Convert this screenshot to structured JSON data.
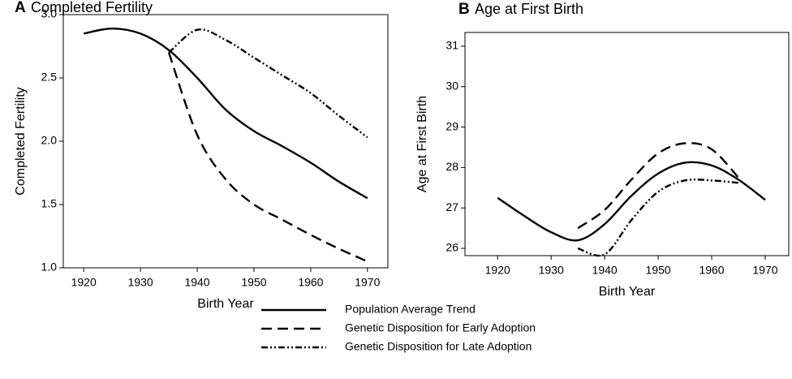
{
  "chart_data": [
    {
      "type": "line",
      "panel": "A",
      "title": "Completed Fertility",
      "xlabel": "Birth Year",
      "ylabel": "Completed Fertility",
      "x": [
        1920,
        1925,
        1930,
        1935,
        1940,
        1945,
        1950,
        1955,
        1960,
        1965,
        1970
      ],
      "xlim": [
        1916.4,
        1973.6
      ],
      "xticks": [
        1920,
        1930,
        1940,
        1950,
        1960,
        1970
      ],
      "ylim": [
        1.0,
        3.0
      ],
      "yticks": [
        {
          "value": 1.0,
          "label": "1.0"
        },
        1.5,
        {
          "value": 2.0,
          "label": "2.0"
        },
        2.5,
        {
          "value": 3.0,
          "label": "3.0"
        }
      ],
      "series": [
        {
          "legend": 0,
          "color": "#000000",
          "values": [
            2.85,
            2.89,
            2.85,
            2.72,
            2.5,
            2.25,
            2.08,
            1.96,
            1.83,
            1.68,
            1.55
          ]
        },
        {
          "legend": 1,
          "color": "#000000",
          "values": [
            null,
            null,
            null,
            2.7,
            2.05,
            1.7,
            1.5,
            1.38,
            1.26,
            1.15,
            1.05
          ]
        },
        {
          "legend": 2,
          "color": "#000000",
          "values": [
            null,
            null,
            null,
            2.7,
            2.88,
            2.8,
            2.66,
            2.52,
            2.38,
            2.2,
            2.03
          ]
        }
      ]
    },
    {
      "type": "line",
      "panel": "B",
      "title": "Age at First Birth",
      "xlabel": "Birth Year",
      "ylabel": "Age at First Birth",
      "x": [
        1920,
        1925,
        1930,
        1935,
        1940,
        1945,
        1950,
        1955,
        1960,
        1965,
        1970
      ],
      "xlim": [
        1913.9,
        1974.4
      ],
      "xticks": [
        1920,
        1930,
        1940,
        1950,
        1960,
        1970
      ],
      "ylim": [
        25.82,
        31.34
      ],
      "yticks": [
        26,
        27,
        28,
        29,
        30,
        31
      ],
      "series": [
        {
          "legend": 0,
          "color": "#000000",
          "values": [
            27.25,
            26.8,
            26.4,
            26.2,
            26.6,
            27.3,
            27.85,
            28.12,
            28.05,
            27.7,
            27.2
          ]
        },
        {
          "legend": 1,
          "color": "#000000",
          "values": [
            null,
            null,
            null,
            26.5,
            26.95,
            27.7,
            28.35,
            28.6,
            28.45,
            27.75,
            null
          ]
        },
        {
          "legend": 2,
          "color": "#000000",
          "values": [
            null,
            null,
            null,
            26.0,
            25.85,
            26.7,
            27.4,
            27.68,
            27.68,
            27.62,
            null
          ]
        }
      ]
    }
  ],
  "legend": [
    {
      "name": "Population Average Trend",
      "dash": "none"
    },
    {
      "name": "Genetic Disposition for Early Adoption",
      "dash": "13,7"
    },
    {
      "name": "Genetic Disposition for Late Adoption",
      "dash": "8,3,2,3,2,3"
    }
  ]
}
